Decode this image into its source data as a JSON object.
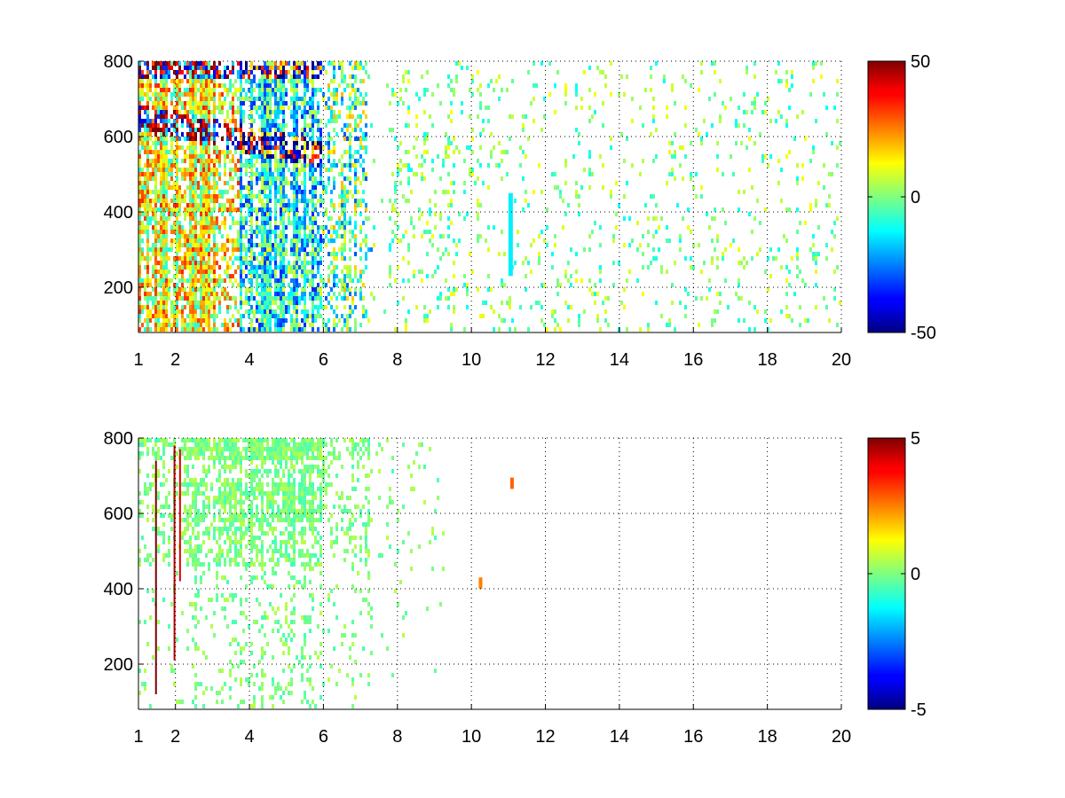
{
  "chart_data": [
    {
      "type": "heatmap",
      "title": "",
      "xlabel": "",
      "ylabel": "",
      "xlim": [
        1,
        20
      ],
      "ylim": [
        80,
        800
      ],
      "x_ticks": [
        1,
        2,
        4,
        6,
        8,
        10,
        12,
        14,
        16,
        18,
        20
      ],
      "y_ticks": [
        200,
        400,
        600,
        800
      ],
      "grid": true,
      "colormap": "jet",
      "colorbar": {
        "min": -50,
        "max": 50,
        "ticks": [
          50,
          0,
          -50
        ]
      },
      "seed": 7
    },
    {
      "type": "heatmap",
      "title": "",
      "xlabel": "",
      "ylabel": "",
      "xlim": [
        1,
        20
      ],
      "ylim": [
        80,
        800
      ],
      "x_ticks": [
        1,
        2,
        4,
        6,
        8,
        10,
        12,
        14,
        16,
        18,
        20
      ],
      "y_ticks": [
        200,
        400,
        600,
        800
      ],
      "grid": true,
      "colormap": "jet",
      "colorbar": {
        "min": -5,
        "max": 5,
        "ticks": [
          5,
          0,
          -5
        ]
      },
      "seed": 19
    }
  ]
}
